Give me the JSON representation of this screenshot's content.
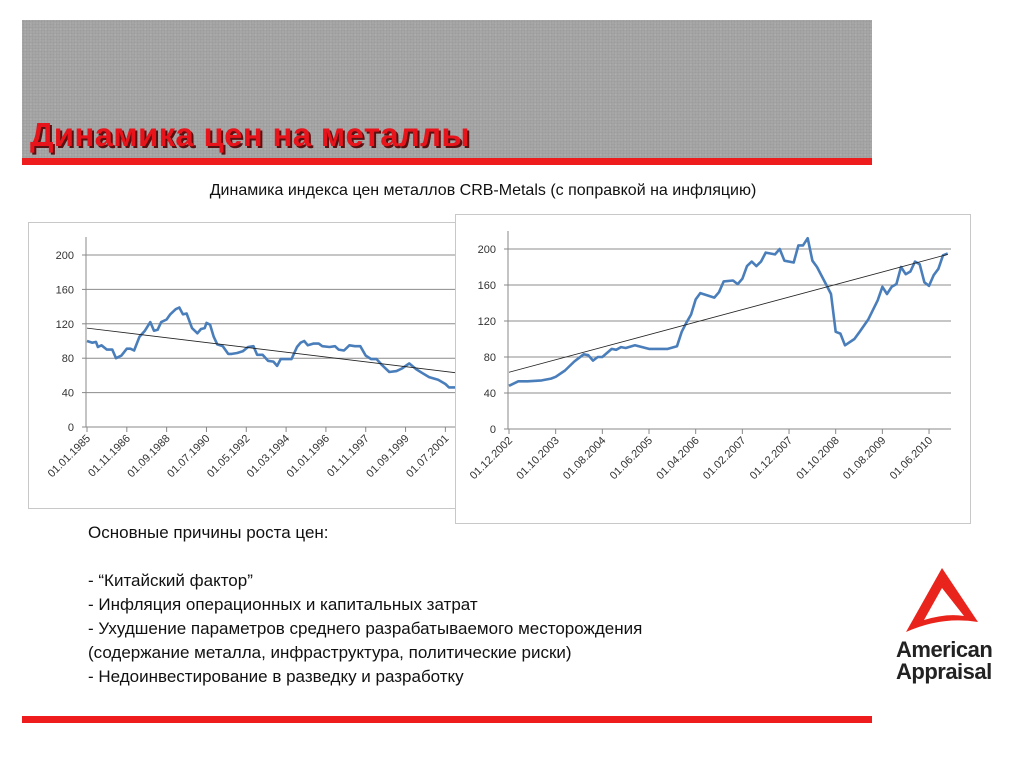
{
  "slide": {
    "title": "Динамика цен на металлы",
    "subtitle": "Динамика индекса цен металлов  CRB-Metals (с поправкой на инфляцию)",
    "accent_color": "#ee1c1c",
    "banner_color": "#a6a6a6"
  },
  "body": {
    "heading": "Основные причины роста цен:",
    "items": [
      "- “Китайский фактор”",
      "- Инфляция операционных и капитальных затрат",
      "- Ухудшение параметров среднего разрабатываемого месторождения",
      "(содержание металла, инфраструктура, политические риски)",
      "- Недоинвестирование в разведку и разработку"
    ]
  },
  "logo": {
    "line1": "American",
    "line2": "Appraisal",
    "icon": "red-triangle-logo"
  },
  "chart_data": [
    {
      "type": "line",
      "grid": true,
      "ylim": [
        0,
        200
      ],
      "yticks": [
        0,
        40,
        80,
        120,
        160,
        200
      ],
      "xticks": [
        "01.01.1985",
        "01.11.1986",
        "01.09.1988",
        "01.07.1990",
        "01.05.1992",
        "01.03.1994",
        "01.01.1996",
        "01.11.1997",
        "01.09.1999",
        "01.07.2001"
      ],
      "xtick_dates": [
        "1985-01",
        "1986-11",
        "1988-09",
        "1990-07",
        "1992-05",
        "1994-03",
        "1996-01",
        "1997-11",
        "1999-09",
        "2001-07"
      ],
      "series_color": "#4a7ebb",
      "series": [
        {
          "x": [
            "1985-01",
            "1985-04",
            "1985-06",
            "1985-07",
            "1985-09",
            "1985-12",
            "1986-03",
            "1986-05",
            "1986-06",
            "1986-08",
            "1986-11",
            "1987-01",
            "1987-03",
            "1987-06",
            "1987-09",
            "1987-12",
            "1988-02",
            "1988-04",
            "1988-06",
            "1988-09",
            "1988-11",
            "1989-02",
            "1989-04",
            "1989-06",
            "1989-08",
            "1989-11",
            "1990-02",
            "1990-04",
            "1990-06",
            "1990-07",
            "1990-09",
            "1990-11",
            "1991-01",
            "1991-04",
            "1991-07",
            "1991-09",
            "1991-12",
            "1992-03",
            "1992-06",
            "1992-09",
            "1992-11",
            "1993-02",
            "1993-05",
            "1993-08",
            "1993-10",
            "1993-12",
            "1994-03",
            "1994-06",
            "1994-09",
            "1994-11",
            "1995-01",
            "1995-03",
            "1995-06",
            "1995-09",
            "1995-11",
            "1996-03",
            "1996-06",
            "1996-08",
            "1996-11",
            "1997-02",
            "1997-05",
            "1997-08",
            "1997-11",
            "1998-02",
            "1998-05",
            "1998-08",
            "1998-12",
            "1999-04",
            "1999-07",
            "1999-11",
            "2000-03",
            "2000-06",
            "2000-10",
            "2001-03",
            "2001-07",
            "2001-09",
            "2002-01"
          ],
          "y": [
            100,
            98,
            99,
            93,
            95,
            90,
            90,
            80,
            81,
            83,
            91,
            91,
            89,
            105,
            112,
            122,
            112,
            113,
            122,
            125,
            131,
            137,
            139,
            131,
            132,
            115,
            109,
            114,
            115,
            121,
            119,
            105,
            96,
            94,
            85,
            85,
            86,
            88,
            93,
            94,
            84,
            84,
            77,
            76,
            71,
            79,
            79,
            79,
            93,
            98,
            100,
            95,
            97,
            97,
            94,
            93,
            94,
            90,
            89,
            95,
            94,
            94,
            83,
            79,
            79,
            72,
            64,
            65,
            68,
            74,
            67,
            63,
            58,
            55,
            50,
            46,
            46
          ]
        }
      ],
      "trendline": {
        "x": [
          "1985-01",
          "2002-01"
        ],
        "y": [
          115,
          63
        ]
      }
    },
    {
      "type": "line",
      "grid": true,
      "ylim": [
        0,
        200
      ],
      "yticks": [
        0,
        40,
        80,
        120,
        160,
        200
      ],
      "xticks": [
        "01.12.2002",
        "01.10.2003",
        "01.08.2004",
        "01.06.2005",
        "01.04.2006",
        "01.02.2007",
        "01.12.2007",
        "01.10.2008",
        "01.08.2009",
        "01.06.2010"
      ],
      "xtick_dates": [
        "2002-12",
        "2003-10",
        "2004-08",
        "2005-06",
        "2006-04",
        "2007-02",
        "2007-12",
        "2008-10",
        "2009-08",
        "2010-06"
      ],
      "series_color": "#4a7ebb",
      "series": [
        {
          "x": [
            "2002-12",
            "2003-02",
            "2003-04",
            "2003-07",
            "2003-09",
            "2003-10",
            "2003-12",
            "2004-02",
            "2004-04",
            "2004-05",
            "2004-06",
            "2004-07",
            "2004-08",
            "2004-10",
            "2004-11",
            "2004-12",
            "2005-01",
            "2005-03",
            "2005-06",
            "2005-10",
            "2005-12",
            "2006-01",
            "2006-02",
            "2006-03",
            "2006-04",
            "2006-05",
            "2006-08",
            "2006-09",
            "2006-10",
            "2006-12",
            "2007-01",
            "2007-02",
            "2007-03",
            "2007-04",
            "2007-05",
            "2007-06",
            "2007-07",
            "2007-09",
            "2007-10",
            "2007-11",
            "2008-01",
            "2008-02",
            "2008-03",
            "2008-04",
            "2008-05",
            "2008-06",
            "2008-08",
            "2008-09",
            "2008-10",
            "2008-11",
            "2008-12",
            "2009-02",
            "2009-03",
            "2009-05",
            "2009-07",
            "2009-08",
            "2009-09",
            "2009-10",
            "2009-11",
            "2009-12",
            "2010-01",
            "2010-02",
            "2010-03",
            "2010-04",
            "2010-05",
            "2010-06",
            "2010-07",
            "2010-08",
            "2010-09",
            "2010-10"
          ],
          "y": [
            48,
            53,
            53,
            54,
            56,
            58,
            65,
            75,
            83,
            82,
            76,
            80,
            80,
            89,
            88,
            91,
            90,
            93,
            89,
            89,
            92,
            108,
            118,
            127,
            144,
            151,
            146,
            152,
            164,
            165,
            161,
            167,
            181,
            186,
            181,
            186,
            196,
            194,
            200,
            187,
            185,
            204,
            204,
            212,
            187,
            180,
            160,
            150,
            108,
            106,
            93,
            100,
            107,
            122,
            143,
            158,
            150,
            158,
            161,
            180,
            172,
            175,
            186,
            183,
            163,
            159,
            171,
            178,
            193,
            195
          ]
        }
      ],
      "trendline": {
        "x": [
          "2002-12",
          "2010-10"
        ],
        "y": [
          63,
          194
        ]
      }
    }
  ]
}
